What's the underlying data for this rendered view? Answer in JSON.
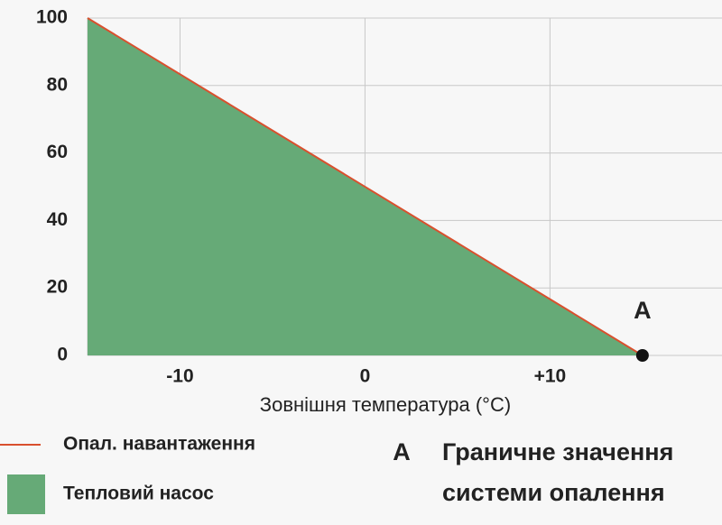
{
  "chart_data": {
    "type": "area",
    "x_label": "Зовнішня температура (°C)",
    "x": [
      -15,
      15
    ],
    "series": [
      {
        "name": "Тепловий насос",
        "type": "area",
        "color": "#66aa77",
        "values": [
          100,
          0
        ]
      },
      {
        "name": "Опал. навантаження",
        "type": "line",
        "color": "#d9502e",
        "values": [
          100,
          0
        ]
      }
    ],
    "legend_order": [
      1,
      0
    ],
    "points": [
      {
        "label": "A",
        "x": 15,
        "y": 0,
        "color": "#111111"
      }
    ],
    "annotation": {
      "marker": "A",
      "lines": [
        "Граничне значення",
        "системи опалення"
      ]
    },
    "xlim": [
      -15,
      19.3
    ],
    "xticks": [
      {
        "value": -10,
        "label": "-10"
      },
      0,
      {
        "value": 10,
        "label": "+10"
      }
    ],
    "ylim": [
      0,
      100
    ],
    "yticks": [
      0,
      20,
      40,
      60,
      80,
      100
    ],
    "grid": true
  }
}
